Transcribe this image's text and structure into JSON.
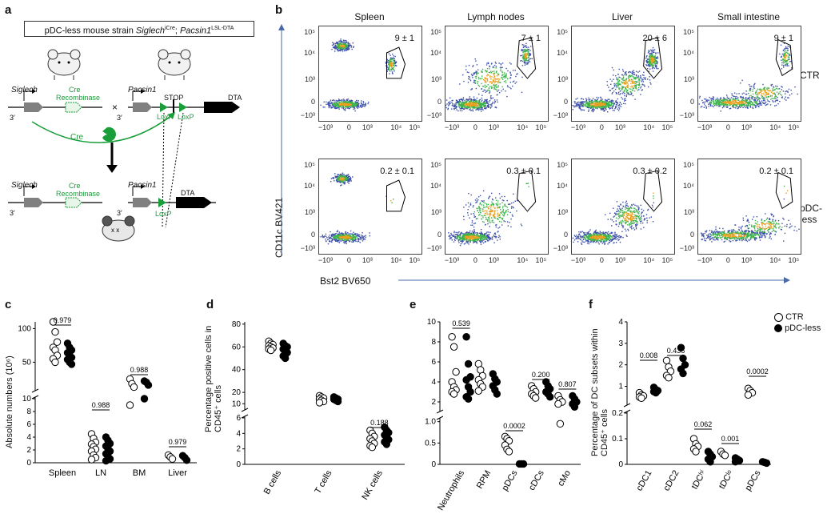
{
  "panel_labels": {
    "a": "a",
    "b": "b",
    "c": "c",
    "d": "d",
    "e": "e",
    "f": "f"
  },
  "panel_a": {
    "header_prefix": "pDC-less mouse strain ",
    "header_gene1": "Siglech",
    "header_sup1": "iCre",
    "header_sep": "; ",
    "header_gene2": "Pacsin1",
    "header_sup2": "LSL-DTA",
    "siglech": "Siglech",
    "pacsin1": "Pacsin1",
    "cre_recombinase_1": "Cre",
    "cre_recombinase_2": "Recombinase",
    "stop": "STOP",
    "dta": "DTA",
    "loxp": "LoxP",
    "cre": "Cre",
    "times": "×",
    "three_prime": "3′"
  },
  "panel_b": {
    "columns": [
      "Spleen",
      "Lymph nodes",
      "Liver",
      "Small intestine"
    ],
    "rows": [
      "CTR",
      "pDC-less"
    ],
    "gate_values": [
      [
        "9 ± 1",
        "7 ± 1",
        "20 ± 6",
        "9 ± 1"
      ],
      [
        "0.2 ± 0.1",
        "0.3 ± 0.1",
        "0.3 ± 0.2",
        "0.2 ± 0.1"
      ]
    ],
    "y_axis_label": "CD11c BV421",
    "x_axis_label": "Bst2 BV650",
    "x_ticks": [
      "−10³",
      "0",
      "10³",
      "10⁴",
      "10⁵"
    ],
    "y_ticks": [
      "10⁵",
      "10⁴",
      "10³",
      "0",
      "−10³"
    ]
  },
  "chart_data": [
    {
      "panel": "c",
      "type": "scatter",
      "ylabel": "Absolute numbers (10⁶)",
      "categories": [
        "Spleen",
        "LN",
        "BM",
        "Liver"
      ],
      "series": [
        {
          "name": "CTR",
          "values": [
            [
              110,
              95,
              80,
              72,
              68,
              60,
              55,
              50
            ],
            [
              4.5,
              3.8,
              3.2,
              2.9,
              2.5,
              2.1,
              1.8,
              1.2,
              0.8,
              0.5
            ],
            [
              25,
              18,
              13,
              9
            ],
            [
              1.2,
              0.9,
              0.6
            ]
          ]
        },
        {
          "name": "pDC-less",
          "values": [
            [
              78,
              72,
              68,
              64,
              60,
              57,
              54,
              50,
              47
            ],
            [
              4.0,
              3.5,
              3.0,
              2.6,
              2.2,
              1.8,
              1.4,
              1.0,
              0.6,
              0.3
            ],
            [
              22,
              20,
              16,
              10
            ],
            [
              1.1,
              0.8,
              0.4
            ]
          ]
        }
      ],
      "p_values": [
        "0.979",
        "0.988",
        "0.988",
        "0.979"
      ],
      "y_ticks_top": [
        "50",
        "100"
      ],
      "y_ticks_bottom": [
        "0",
        "2",
        "4",
        "6",
        "8",
        "10"
      ]
    },
    {
      "panel": "d",
      "type": "scatter",
      "ylabel": "Percentage positive cells in CD45⁺ cells",
      "categories": [
        "B cells",
        "T cells",
        "NK cells"
      ],
      "series": [
        {
          "name": "CTR",
          "values": [
            [
              65,
              63,
              62,
              61,
              60,
              59,
              58,
              57
            ],
            [
              17,
              16,
              15,
              14,
              13,
              12,
              11
            ],
            [
              4.4,
              4.0,
              3.6,
              3.3,
              3.0,
              2.7,
              2.4,
              2.2
            ]
          ]
        },
        {
          "name": "pDC-less",
          "values": [
            [
              63,
              61,
              60,
              58,
              57,
              55,
              52,
              50
            ],
            [
              16,
              15,
              14,
              14,
              13,
              12
            ],
            [
              4.8,
              4.4,
              4.1,
              3.8,
              3.5,
              3.2,
              2.9,
              2.6
            ]
          ]
        }
      ],
      "p_values": [
        "0.188"
      ],
      "y_ticks_top": [
        "10",
        "20",
        "40",
        "60",
        "80"
      ],
      "y_ticks_bottom": [
        "0",
        "2",
        "4",
        "6"
      ]
    },
    {
      "panel": "e",
      "type": "scatter",
      "categories": [
        "Neutrophils",
        "RPM",
        "pDCs",
        "cDCs",
        "cMo"
      ],
      "series": [
        {
          "name": "CTR",
          "values": [
            [
              8.5,
              7.5,
              5.0,
              4.0,
              3.5,
              3.2,
              3.0,
              2.8
            ],
            [
              5.8,
              5.2,
              4.6,
              4.2,
              3.8,
              3.5,
              3.1
            ],
            [
              0.65,
              0.6,
              0.55,
              0.45,
              0.35,
              0.3
            ],
            [
              3.6,
              3.3,
              3.0,
              2.8,
              2.6,
              2.4
            ],
            [
              2.6,
              2.2,
              2.0,
              1.8,
              0.95
            ]
          ]
        },
        {
          "name": "pDC-less",
          "values": [
            [
              8.5,
              5.8,
              4.5,
              4.2,
              3.5,
              3.0,
              2.5,
              2.3
            ],
            [
              4.8,
              4.3,
              4.0,
              3.6,
              3.2,
              2.8
            ],
            [
              0.01,
              0.01,
              0.01
            ],
            [
              4.0,
              3.6,
              3.3,
              3.0,
              2.8,
              2.5
            ],
            [
              2.6,
              2.3,
              2.0,
              1.8,
              1.5
            ]
          ]
        }
      ],
      "p_values": [
        "0.539",
        "0.0002",
        "0.200",
        "0.807"
      ],
      "y_ticks_top": [
        "2",
        "4",
        "6",
        "8",
        "10"
      ],
      "y_ticks_bottom": [
        "0",
        "0.5",
        "1.0"
      ]
    },
    {
      "panel": "f",
      "type": "scatter",
      "ylabel": "Percentage of DC subsets within CD45⁺ cells",
      "categories": [
        "cDC1",
        "cDC2",
        "tDC^hi",
        "tDC^lo",
        "pDCs"
      ],
      "series": [
        {
          "name": "CTR",
          "values": [
            [
              0.7,
              0.6,
              0.55,
              0.5,
              0.45
            ],
            [
              2.2,
              1.9,
              1.7,
              1.5,
              1.4
            ],
            [
              0.1,
              0.08,
              0.07,
              0.06,
              0.05
            ],
            [
              0.05,
              0.04,
              0.035
            ],
            [
              0.9,
              0.8,
              0.7,
              0.6
            ]
          ]
        },
        {
          "name": "pDC-less",
          "values": [
            [
              0.95,
              0.85,
              0.8,
              0.75,
              0.7
            ],
            [
              2.8,
              2.3,
              2.0,
              1.8,
              1.6
            ],
            [
              0.05,
              0.04,
              0.03,
              0.02,
              0.01
            ],
            [
              0.025,
              0.02,
              0.015,
              0.01
            ],
            [
              0.01,
              0.008,
              0.005
            ]
          ]
        }
      ],
      "p_values": [
        "0.008",
        "0.436",
        "0.062",
        "0.001",
        "0.0002"
      ],
      "y_ticks_top": [
        "1",
        "2",
        "3",
        "4"
      ],
      "y_ticks_bottom": [
        "0",
        "0.1",
        "0.2"
      ],
      "legend": [
        "CTR",
        "pDC-less"
      ]
    }
  ],
  "colors": {
    "green": "#1a9e3a",
    "black": "#000000",
    "grey": "#808080",
    "flow_blue": "#3b4ea8",
    "flow_core": "#f0a020"
  }
}
